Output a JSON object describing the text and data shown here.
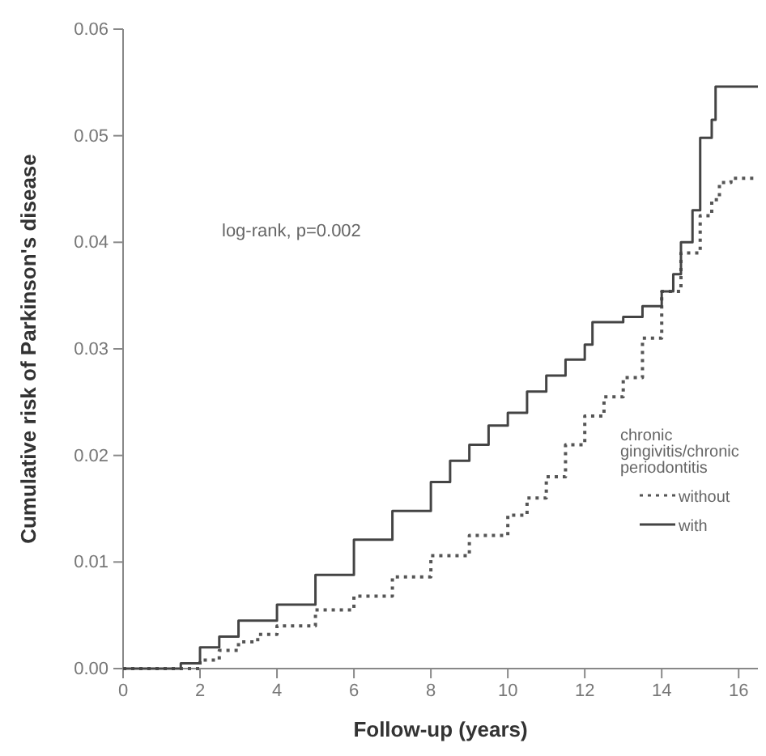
{
  "chart_data": {
    "type": "step",
    "xlabel": "Follow-up (years)",
    "ylabel": "Cumulative risk of Parkinson's disease",
    "legend_title": "chronic gingivitis/chronic periodontitis",
    "annotations": [
      "log-rank, p=0.002"
    ],
    "xlim": [
      0,
      16.5
    ],
    "xticks": [
      0,
      2,
      4,
      6,
      8,
      10,
      12,
      14,
      16
    ],
    "ylim": [
      0,
      0.06
    ],
    "yticks": [
      {
        "value": 0,
        "label": "0.00"
      },
      {
        "value": 0.01,
        "label": "0.01"
      },
      {
        "value": 0.02,
        "label": "0.02"
      },
      {
        "value": 0.03,
        "label": "0.03"
      },
      {
        "value": 0.04,
        "label": "0.04"
      },
      {
        "value": 0.05,
        "label": "0.05"
      },
      {
        "value": 0.06,
        "label": "0.06"
      }
    ],
    "grid": false,
    "legend": "right",
    "marker": "none",
    "series": [
      {
        "name": "without",
        "color": "#555555",
        "line_style": "dotted",
        "x": [
          0,
          1.5,
          2,
          2.5,
          3,
          3.5,
          4,
          5,
          6,
          7,
          8,
          9,
          10,
          10.5,
          11,
          11.5,
          12,
          12.5,
          13,
          13.5,
          14,
          14.5,
          15,
          15.3,
          15.5,
          15.8,
          16.5
        ],
        "values": [
          0,
          0,
          0.0008,
          0.0017,
          0.0025,
          0.0032,
          0.004,
          0.0055,
          0.0068,
          0.0086,
          0.0106,
          0.0125,
          0.0144,
          0.016,
          0.018,
          0.021,
          0.0237,
          0.0255,
          0.0273,
          0.031,
          0.0354,
          0.039,
          0.0425,
          0.044,
          0.0456,
          0.046,
          0.046
        ]
      },
      {
        "name": "with",
        "color": "#444444",
        "line_style": "solid",
        "x": [
          0,
          1.2,
          1.5,
          2,
          2.5,
          3,
          4,
          5,
          6,
          7,
          8,
          8.5,
          9,
          9.5,
          10,
          10.5,
          11,
          11.5,
          12,
          12.2,
          13,
          13.5,
          14,
          14.3,
          14.5,
          14.8,
          15,
          15.3,
          15.4,
          16.5
        ],
        "values": [
          0,
          0,
          0.0005,
          0.002,
          0.003,
          0.0045,
          0.006,
          0.0088,
          0.0121,
          0.0148,
          0.0175,
          0.0195,
          0.021,
          0.0228,
          0.024,
          0.026,
          0.0275,
          0.029,
          0.0304,
          0.0325,
          0.033,
          0.034,
          0.0354,
          0.037,
          0.04,
          0.043,
          0.0498,
          0.0515,
          0.0546,
          0.0546
        ]
      }
    ]
  }
}
